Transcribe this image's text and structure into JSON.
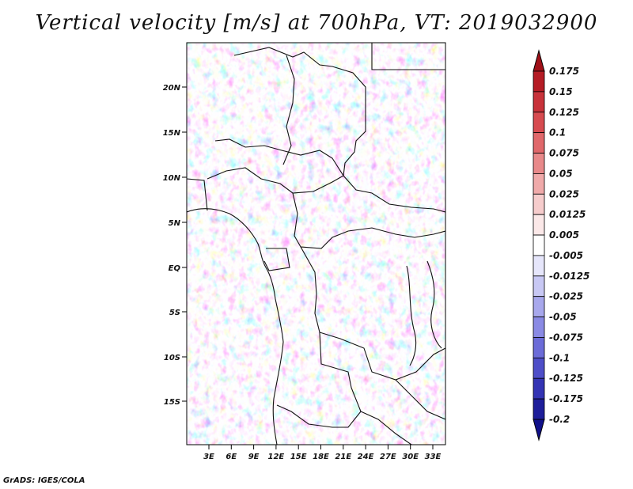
{
  "title": "Vertical velocity [m/s] at 700hPa, VT: 2019032900",
  "credit": "GrADS: IGES/COLA",
  "map": {
    "lat_labels": [
      "20N",
      "15N",
      "10N",
      "5N",
      "EQ",
      "5S",
      "10S",
      "15S"
    ],
    "lon_labels": [
      "3E",
      "6E",
      "9E",
      "12E",
      "15E",
      "18E",
      "21E",
      "24E",
      "27E",
      "30E",
      "33E"
    ]
  },
  "colorbar": {
    "labels": [
      "0.175",
      "0.15",
      "0.125",
      "0.1",
      "0.075",
      "0.05",
      "0.025",
      "0.0125",
      "0.005",
      "-0.005",
      "-0.0125",
      "-0.025",
      "-0.05",
      "-0.075",
      "-0.1",
      "-0.125",
      "-0.175",
      "-0.2"
    ],
    "colors": [
      "#a01018",
      "#b51c25",
      "#c8323a",
      "#d74b50",
      "#e0686b",
      "#e8898a",
      "#f0aaaa",
      "#f6cccc",
      "#fbe8e8",
      "#ffffff",
      "#e6e6fb",
      "#c8c8f4",
      "#a8a8ec",
      "#8a8ae4",
      "#6c6cd8",
      "#4e4ec8",
      "#3434b4",
      "#1e1e9a",
      "#10108a"
    ]
  }
}
